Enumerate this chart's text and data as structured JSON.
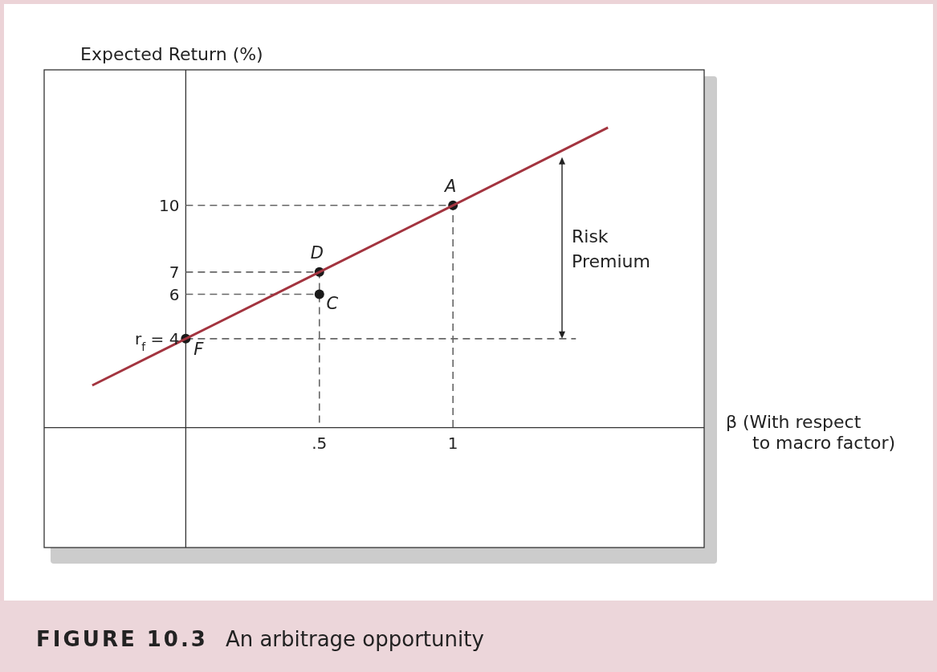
{
  "chart_data": {
    "type": "line",
    "title": "FIGURE 10.3",
    "subtitle": "An arbitrage opportunity",
    "xlabel": "β (With respect to macro factor)",
    "ylabel": "Expected Return (%)",
    "xlim": [
      -0.53,
      1.94
    ],
    "ylim": [
      -5.4,
      16.1
    ],
    "xticks": [
      {
        "value": 0.5,
        "label": ".5"
      },
      1
    ],
    "yticks": [
      {
        "value": 4,
        "label": "r$_{f}$ = 4"
      },
      6,
      7,
      10
    ],
    "series": [
      {
        "color": "#a3343f",
        "marker": "none",
        "line_style": "solid",
        "x": [
          -0.35,
          0,
          0.5,
          1,
          1.58
        ],
        "values": [
          1.9,
          4,
          7,
          10,
          13.5
        ]
      },
      {
        "type": "line",
        "color": "#666666",
        "marker": "none",
        "line_style": "dashed",
        "x": [
          0,
          1,
          1
        ],
        "values": [
          10,
          10,
          0
        ]
      },
      {
        "type": "line",
        "color": "#666666",
        "marker": "none",
        "line_style": "dashed",
        "x": [
          0,
          0.5,
          0.5
        ],
        "values": [
          7,
          7,
          0
        ]
      },
      {
        "type": "line",
        "color": "#666666",
        "marker": "none",
        "line_style": "dashed",
        "x": [
          0,
          0.5
        ],
        "values": [
          6,
          6
        ]
      },
      {
        "type": "line",
        "color": "#666666",
        "marker": "none",
        "line_style": "dashed",
        "x": [
          0,
          1.46
        ],
        "values": [
          4,
          4
        ]
      },
      {
        "type": "scatter",
        "color": "#1a1a1a",
        "marker": "circle",
        "x": [
          0,
          0.5,
          0.5,
          1
        ],
        "values": [
          4,
          6,
          7,
          10
        ]
      }
    ],
    "annotations": [
      {
        "text": "A",
        "x": 1,
        "y": 10
      },
      {
        "text": "D",
        "x": 0.5,
        "y": 7
      },
      {
        "text": "C",
        "x": 0.5,
        "y": 6
      },
      {
        "text": "F",
        "x": 0,
        "y": 4
      },
      "Risk Premium"
    ]
  }
}
